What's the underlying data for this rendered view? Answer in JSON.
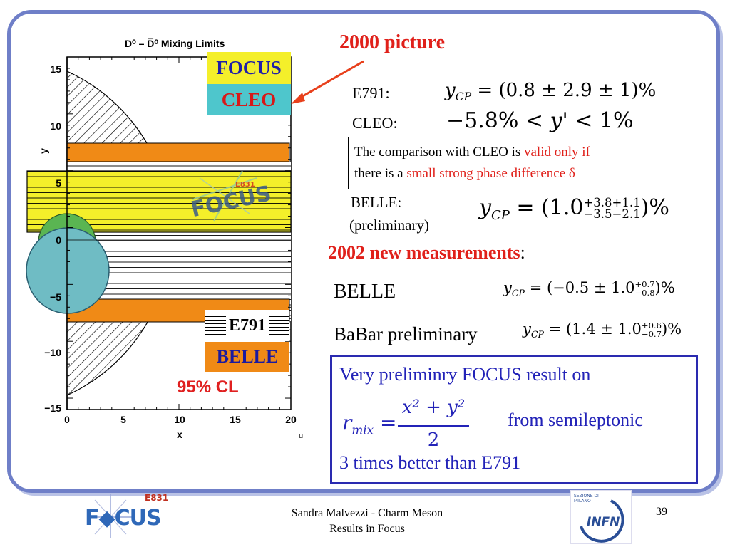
{
  "plot": {
    "title": "D⁰ – D̅⁰ Mixing Limits",
    "xlabel": "x",
    "ylabel": "y",
    "x_ticks": [
      "0",
      "5",
      "10",
      "15",
      "20"
    ],
    "y_ticks": [
      "15",
      "10",
      "5",
      "0",
      "−5",
      "−10",
      "−15"
    ],
    "legend": {
      "focus": "FOCUS",
      "cleo": "CLEO",
      "e791": "E791",
      "belle": "BELLE"
    },
    "cl_label": "95% CL",
    "stray_label": "u",
    "colors": {
      "focus": "#f4ef2a",
      "cleo": "#4ec6cc",
      "belle": "#f08a16",
      "green": "#5ab552",
      "cl": "#e02020"
    }
  },
  "annotation": {
    "label": "2000 picture",
    "arrow_color": "#e8401c"
  },
  "e791": {
    "label": "E791:",
    "lhs": "y",
    "lhs_sub": "CP",
    "rhs": "= (0.8 ± 2.9 ± 1)%"
  },
  "cleo": {
    "label": "CLEO:",
    "expr_pre": "−5.8% < ",
    "expr_var": "y",
    "expr_post": "' < 1%"
  },
  "note": {
    "line1_black": "The comparison with CLEO is ",
    "line1_red": "valid  only if",
    "line2_black": " there is a ",
    "line2_red": "small strong phase difference δ"
  },
  "belle_old": {
    "label": "BELLE:",
    "sublabel": "(preliminary)",
    "lhs": "y",
    "lhs_sub": "CP",
    "rhs_pre": "= (1.0",
    "sup": "+3.8+1.1",
    "sub": "−3.5−2.1",
    "rhs_post": ")%"
  },
  "new_heading": {
    "bold": "2002 new measurements",
    "tail": ":"
  },
  "belle_new": {
    "label": "BELLE",
    "lhs": "y",
    "lhs_sub": "CP",
    "rhs_pre": "= (−0.5 ± 1.0",
    "sup": "+0.7",
    "sub": "−0.8",
    "rhs_post": ")%"
  },
  "babar": {
    "label": "BaBar preliminary",
    "lhs": "y",
    "lhs_sub": "CP",
    "rhs_pre": "= (1.4 ± 1.0",
    "sup": "+0.6",
    "sub": "−0.7",
    "rhs_post": ")%"
  },
  "focus_box": {
    "line1": "Very preliminry FOCUS result on",
    "lhs": "r",
    "lhs_sub": "mix",
    "eq": "=",
    "numerator": "x² + y²",
    "denominator": "2",
    "from": "from semileptonic",
    "line3": "3 times better than E791",
    "border_color": "#2a2ab0",
    "text_color": "#2323b8"
  },
  "footer": {
    "line1": "Sandra Malvezzi - Charm Meson",
    "line2": "Results  in Focus",
    "page": "39",
    "focus_logo_text": "F◆CUS",
    "focus_logo_tag": "E831",
    "infn_text": "INFN",
    "infn_top_1": "SEZIONE DI",
    "infn_top_2": "MILANO"
  }
}
